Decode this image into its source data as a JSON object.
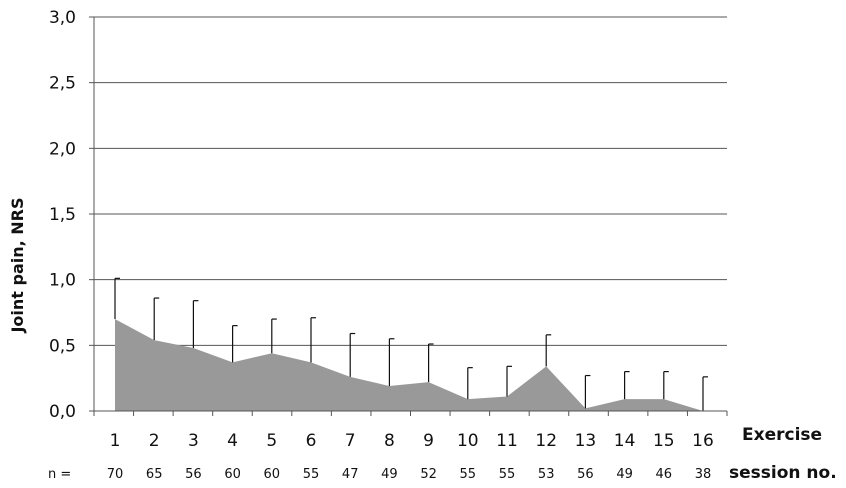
{
  "chart_data": {
    "type": "area",
    "ylabel": "Joint pain, NRS",
    "xlabel_line1": "Exercise",
    "xlabel_line2": "session no.",
    "n_prefix": "n =",
    "ylim": [
      0,
      3
    ],
    "y_ticks": [
      "0,0",
      "0,5",
      "1,0",
      "1,5",
      "2,0",
      "2,5",
      "3,0"
    ],
    "y_tick_values": [
      0,
      0.5,
      1,
      1.5,
      2,
      2.5,
      3
    ],
    "categories": [
      "1",
      "2",
      "3",
      "4",
      "5",
      "6",
      "7",
      "8",
      "9",
      "10",
      "11",
      "12",
      "13",
      "14",
      "15",
      "16"
    ],
    "n": [
      "70",
      "65",
      "56",
      "60",
      "60",
      "55",
      "47",
      "49",
      "52",
      "55",
      "55",
      "53",
      "56",
      "49",
      "46",
      "38"
    ],
    "values": [
      0.7,
      0.54,
      0.48,
      0.37,
      0.44,
      0.37,
      0.26,
      0.19,
      0.22,
      0.09,
      0.11,
      0.34,
      0.02,
      0.09,
      0.09,
      0.0
    ],
    "error_upper": [
      1.01,
      0.86,
      0.84,
      0.65,
      0.7,
      0.71,
      0.59,
      0.55,
      0.51,
      0.33,
      0.34,
      0.58,
      0.27,
      0.3,
      0.3,
      0.26
    ],
    "grid": true,
    "colors": {
      "area": "#999999",
      "grid": "#555555",
      "axis": "#555555",
      "error": "#111111"
    }
  }
}
